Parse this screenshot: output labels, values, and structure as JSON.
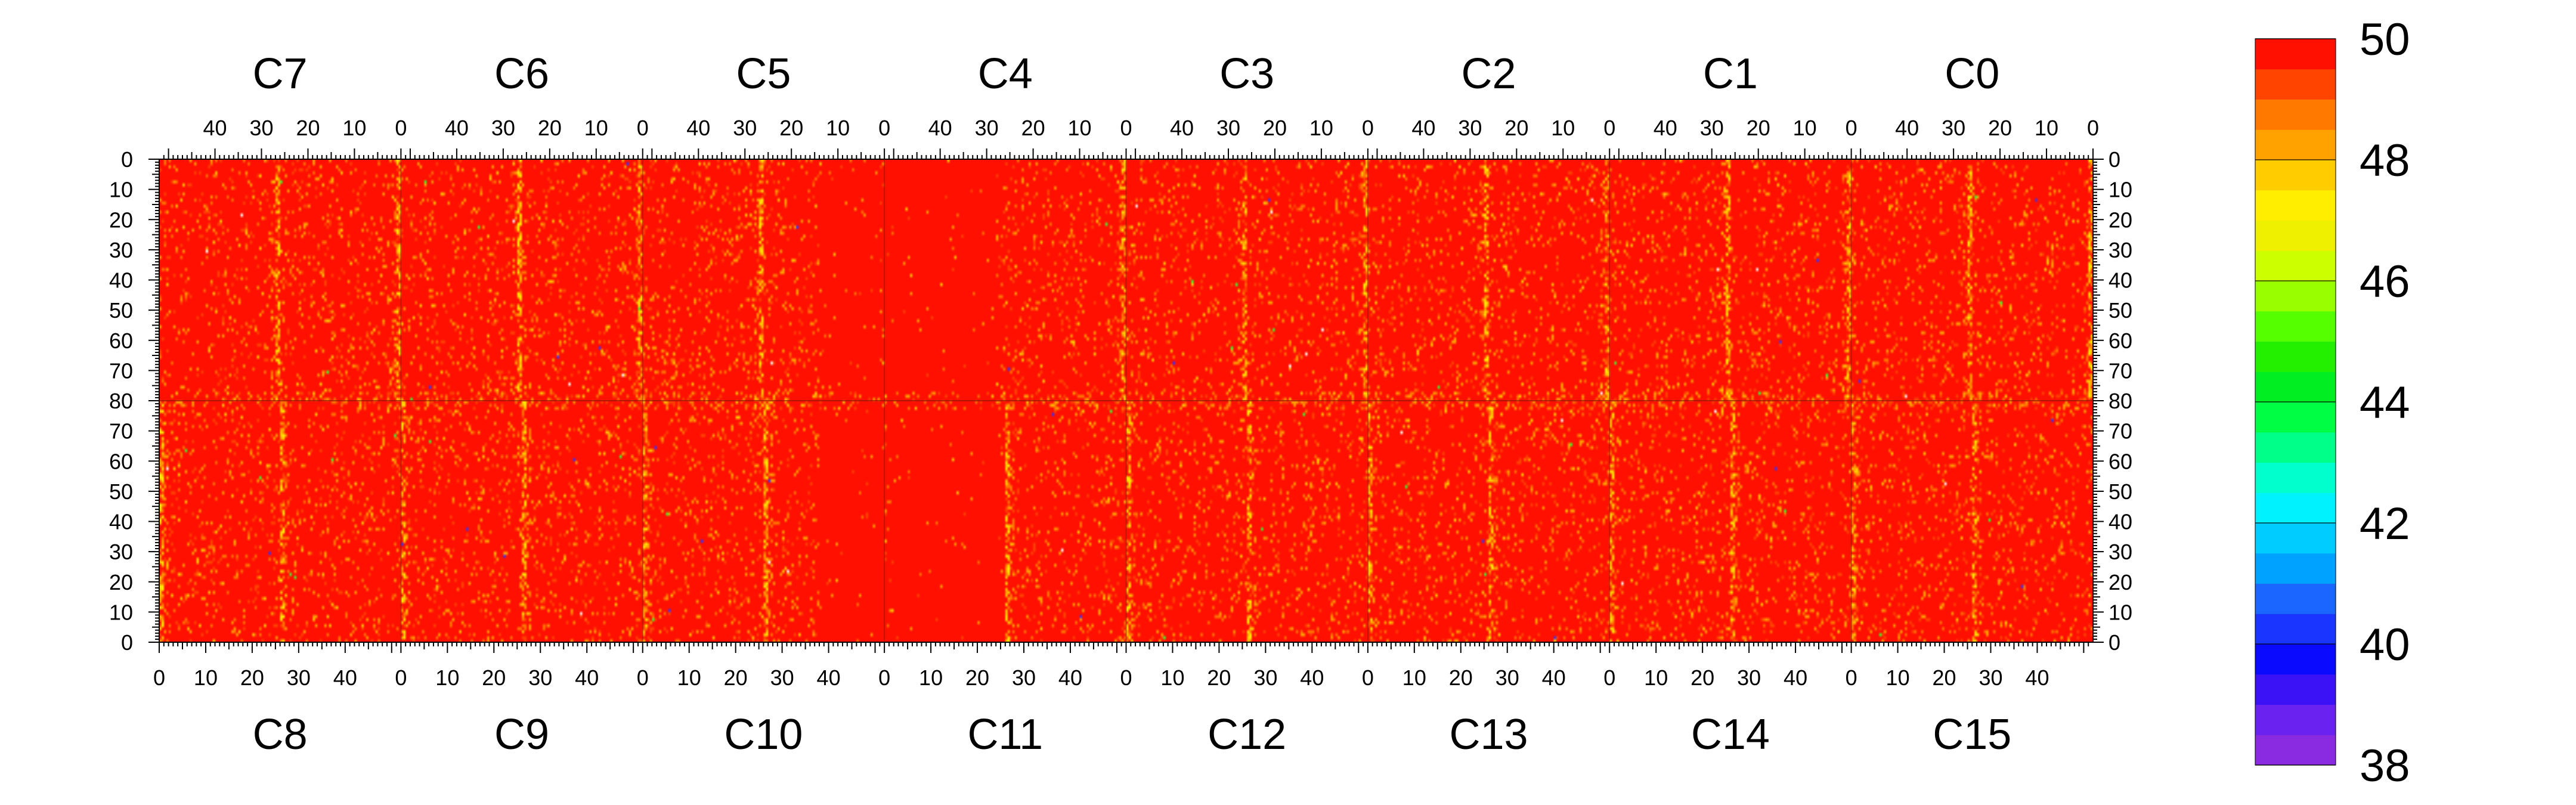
{
  "chart_data": {
    "type": "heatmap",
    "title": "",
    "grid": false,
    "legend": "colorbar-right",
    "description_of_values": "Per-pixel values for 16 chips (C0–C15), each 52 columns × 80 rows; almost all cells sit at the colour-scale maximum (50) with scattered lower values, concentrated near column 0 of each chip and the top/bottom chip edges.",
    "chips_top_row": [
      "C7",
      "C6",
      "C5",
      "C4",
      "C3",
      "C2",
      "C1",
      "C0"
    ],
    "chips_bottom_row": [
      "C8",
      "C9",
      "C10",
      "C11",
      "C12",
      "C13",
      "C14",
      "C15"
    ],
    "chip_columns": 52,
    "chip_rows": 80,
    "top_axis_ticks": [
      "40",
      "30",
      "20",
      "10",
      "0"
    ],
    "bottom_axis_ticks": [
      "0",
      "10",
      "20",
      "30",
      "40"
    ],
    "left_axis_ticks_top_half": [
      "0",
      "10",
      "20",
      "30",
      "40",
      "50",
      "60",
      "70",
      "80"
    ],
    "left_axis_ticks_bottom_half": [
      "70",
      "60",
      "50",
      "40",
      "30",
      "20",
      "10",
      "0"
    ],
    "right_axis_ticks_top_half": [
      "0",
      "10",
      "20",
      "30",
      "40",
      "50",
      "60",
      "70",
      "80"
    ],
    "right_axis_ticks_bottom_half": [
      "70",
      "60",
      "50",
      "40",
      "30",
      "20",
      "10",
      "0"
    ],
    "colorbar": {
      "min": 38,
      "max": 50,
      "tick_labels": [
        "50",
        "48",
        "46",
        "44",
        "42",
        "40",
        "38"
      ],
      "colors_low_to_high": [
        "#8a2be2",
        "#6a22f0",
        "#3a12f5",
        "#0a0aff",
        "#1a35ff",
        "#1a66ff",
        "#00a2ff",
        "#00ccff",
        "#00f2ff",
        "#00ffcc",
        "#00ff88",
        "#00ff44",
        "#00ee22",
        "#22f000",
        "#55ff00",
        "#99ff00",
        "#ccff00",
        "#eef000",
        "#ffee00",
        "#ffcc00",
        "#ffa200",
        "#ff7800",
        "#ff4400",
        "#ff1000"
      ]
    },
    "dominant_value": 50,
    "hot_columns": [
      0,
      1,
      2
    ],
    "colors": {
      "max": "#ff1000",
      "hot_1": "#ff4400",
      "hot_2": "#ff7800",
      "hot_3": "#ffa200",
      "hot_4": "#ffcc00",
      "hot_5": "#ffee00",
      "rare_green": "#33ff33",
      "rare_blue": "#3333ff",
      "rare_white": "#ffffff"
    }
  }
}
